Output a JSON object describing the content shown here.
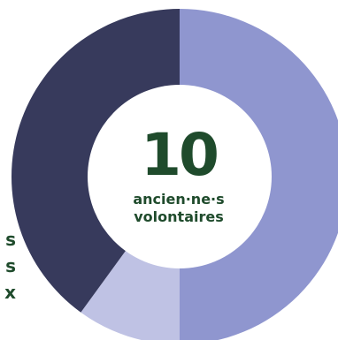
{
  "chart_data": {
    "type": "pie",
    "donut": true,
    "center_value": "10",
    "center_label_lines": [
      "ancien·ne·s",
      "volontaires"
    ],
    "segments": [
      {
        "value": 5,
        "color": "#8f96cf"
      },
      {
        "value": 1,
        "color": "#bfc2e4"
      },
      {
        "value": 4,
        "color": "#373a5c"
      }
    ]
  },
  "side_labels": [
    "s",
    "s",
    "x"
  ]
}
